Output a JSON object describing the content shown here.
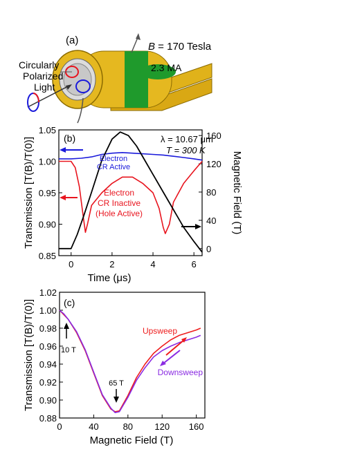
{
  "panel_a": {
    "label": "(a)",
    "field_label": "B",
    "field_value": " = 170 Tesla",
    "current_label": "2.3 MA",
    "light_label_lines": [
      "Circularly",
      "Polarized",
      "Light"
    ]
  },
  "colors": {
    "electron_active": "#1a1adb",
    "electron_inactive": "#e8141e",
    "field": "#000000",
    "downsweep": "#8a2be2",
    "upsweep": "#ee1c1c",
    "coil_gold": "#e0b21a",
    "coil_green": "#1f9a2c"
  },
  "chart_data": [
    {
      "panel": "(b)",
      "type": "line",
      "xlabel": "Time (μs)",
      "ylabel": "Transmission [T(B)/T(0)]",
      "y2label": "Magnetic Field (T)",
      "xlim": [
        -0.6,
        6.4
      ],
      "ylim": [
        0.85,
        1.05
      ],
      "y2lim": [
        -10,
        168
      ],
      "x_ticks": [
        "0",
        "2",
        "4",
        "6"
      ],
      "x_tick_values": [
        0,
        2,
        4,
        6
      ],
      "y_ticks": [
        "0.85",
        "0.90",
        "0.95",
        "1.00",
        "1.05"
      ],
      "y_tick_values": [
        0.85,
        0.9,
        0.95,
        1.0,
        1.05
      ],
      "y2_ticks": [
        "0",
        "40",
        "80",
        "120",
        "160"
      ],
      "y2_tick_values": [
        0,
        40,
        80,
        120,
        160
      ],
      "annotations": {
        "wavelength": "λ = 10.67 μm",
        "temperature": "T = 300 K",
        "active_lines": [
          "Electron",
          "CR Active"
        ],
        "inactive_lines": [
          "Electron",
          "CR Inactive",
          "(Hole Active)"
        ]
      },
      "series": [
        {
          "axis": "left",
          "x": [
            -0.6,
            0,
            0.5,
            1,
            1.5,
            2,
            2.5,
            3,
            3.5,
            4,
            4.5,
            5,
            5.5,
            6,
            6.4
          ],
          "values": [
            1.004,
            1.004,
            1.005,
            1.007,
            1.011,
            1.013,
            1.014,
            1.013,
            1.012,
            1.011,
            1.01,
            1.008,
            1.006,
            1.004,
            1.002
          ]
        },
        {
          "axis": "left",
          "x": [
            -0.6,
            0,
            0.2,
            0.4,
            0.6,
            0.7,
            0.8,
            1.0,
            1.5,
            2.0,
            2.5,
            3.0,
            3.5,
            4.0,
            4.3,
            4.5,
            4.6,
            4.8,
            5.0,
            5.5,
            6.0,
            6.4
          ],
          "values": [
            1.0,
            1.0,
            0.99,
            0.96,
            0.91,
            0.887,
            0.9,
            0.93,
            0.95,
            0.965,
            0.975,
            0.975,
            0.965,
            0.95,
            0.925,
            0.895,
            0.885,
            0.9,
            0.935,
            0.965,
            0.985,
            1.0
          ]
        },
        {
          "axis": "right",
          "x": [
            -0.6,
            0,
            0.3,
            0.6,
            1.0,
            1.5,
            2.0,
            2.4,
            2.8,
            3.2,
            3.6,
            4.0,
            4.5,
            5.0,
            5.5,
            6.0,
            6.4
          ],
          "values": [
            0,
            0,
            20,
            45,
            80,
            125,
            155,
            165,
            160,
            145,
            125,
            105,
            80,
            55,
            30,
            10,
            -5
          ]
        }
      ]
    },
    {
      "panel": "(c)",
      "type": "line",
      "xlabel": "Magnetic Field (T)",
      "ylabel": "Transmission [T(B)/T(0)]",
      "xlim": [
        0,
        170
      ],
      "ylim": [
        0.88,
        1.02
      ],
      "x_ticks": [
        "0",
        "40",
        "80",
        "120",
        "160"
      ],
      "x_tick_values": [
        0,
        40,
        80,
        120,
        160
      ],
      "y_ticks": [
        "0.88",
        "0.90",
        "0.92",
        "0.94",
        "0.96",
        "0.98",
        "1.00",
        "1.02"
      ],
      "y_tick_values": [
        0.88,
        0.9,
        0.92,
        0.94,
        0.96,
        0.98,
        1.0,
        1.02
      ],
      "annotations": {
        "marker_10": "10 T",
        "marker_65": "65 T"
      },
      "series": [
        {
          "name": "Upsweep",
          "x": [
            0,
            5,
            10,
            20,
            30,
            40,
            50,
            60,
            65,
            70,
            80,
            90,
            100,
            110,
            120,
            130,
            140,
            150,
            160,
            165
          ],
          "values": [
            1.0,
            0.995,
            0.99,
            0.975,
            0.955,
            0.93,
            0.905,
            0.89,
            0.887,
            0.888,
            0.905,
            0.925,
            0.94,
            0.952,
            0.96,
            0.967,
            0.972,
            0.975,
            0.978,
            0.98
          ]
        },
        {
          "name": "Downsweep",
          "x": [
            0,
            5,
            10,
            20,
            30,
            40,
            50,
            60,
            65,
            70,
            80,
            90,
            100,
            110,
            120,
            130,
            140,
            150,
            160,
            165
          ],
          "values": [
            1.0,
            0.996,
            0.99,
            0.976,
            0.956,
            0.931,
            0.906,
            0.891,
            0.886,
            0.887,
            0.903,
            0.922,
            0.936,
            0.948,
            0.955,
            0.96,
            0.964,
            0.967,
            0.97,
            0.972
          ]
        }
      ]
    }
  ]
}
